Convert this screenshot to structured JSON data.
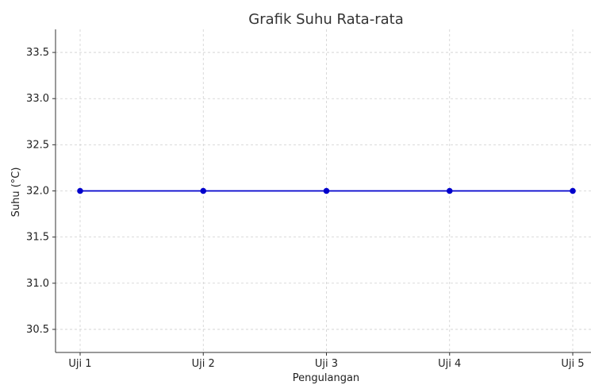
{
  "chart_data": {
    "type": "line",
    "title": "Grafik Suhu Rata-rata",
    "xlabel": "Pengulangan",
    "ylabel": "Suhu (°C)",
    "categories": [
      "Uji 1",
      "Uji 2",
      "Uji 3",
      "Uji 4",
      "Uji 5"
    ],
    "series": [
      {
        "values": [
          32.0,
          32.0,
          32.0,
          32.0,
          32.0
        ],
        "color": "#0000cc",
        "marker": "circle"
      }
    ],
    "ylim": [
      30.25,
      33.75
    ],
    "yticks": [
      "30.5",
      "31.0",
      "31.5",
      "32.0",
      "32.5",
      "33.0",
      "33.5"
    ],
    "grid": true
  }
}
